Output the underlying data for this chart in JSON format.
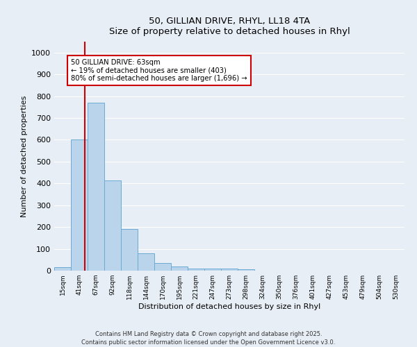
{
  "title_line1": "50, GILLIAN DRIVE, RHYL, LL18 4TA",
  "title_line2": "Size of property relative to detached houses in Rhyl",
  "xlabel": "Distribution of detached houses by size in Rhyl",
  "ylabel": "Number of detached properties",
  "bar_labels": [
    "15sqm",
    "41sqm",
    "67sqm",
    "92sqm",
    "118sqm",
    "144sqm",
    "170sqm",
    "195sqm",
    "221sqm",
    "247sqm",
    "273sqm",
    "298sqm",
    "324sqm",
    "350sqm",
    "376sqm",
    "401sqm",
    "427sqm",
    "453sqm",
    "479sqm",
    "504sqm",
    "530sqm"
  ],
  "bar_values": [
    15,
    600,
    770,
    415,
    190,
    78,
    35,
    20,
    10,
    10,
    10,
    5,
    0,
    0,
    0,
    0,
    0,
    0,
    0,
    0,
    0
  ],
  "bar_color": "#bad4ec",
  "bar_edge_color": "#6aaad4",
  "annotation_line1": "50 GILLIAN DRIVE: 63sqm",
  "annotation_line2": "← 19% of detached houses are smaller (403)",
  "annotation_line3": "80% of semi-detached houses are larger (1,696) →",
  "annotation_box_facecolor": "#ffffff",
  "annotation_box_edgecolor": "#cc0000",
  "red_line_color": "#cc0000",
  "ylim": [
    0,
    1050
  ],
  "footer_line1": "Contains HM Land Registry data © Crown copyright and database right 2025.",
  "footer_line2": "Contains public sector information licensed under the Open Government Licence v3.0.",
  "bg_color": "#e8eef5",
  "grid_color": "#ffffff",
  "yticks": [
    0,
    100,
    200,
    300,
    400,
    500,
    600,
    700,
    800,
    900,
    1000
  ]
}
